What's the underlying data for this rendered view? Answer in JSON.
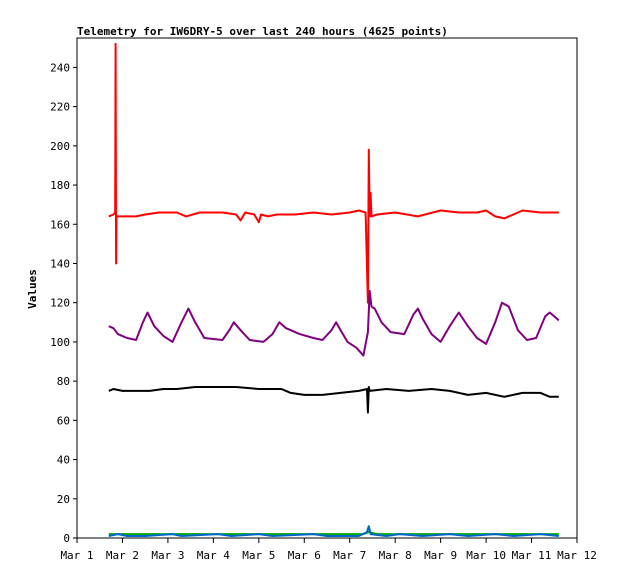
{
  "chart_data": {
    "type": "line",
    "title": "Telemetry for IW6DRY-5 over last 240 hours (4625 points)",
    "xlabel": "",
    "ylabel": "Values",
    "xlim": [
      1,
      12
    ],
    "ylim": [
      0,
      255
    ],
    "grid": false,
    "legend": "none",
    "x_ticks": [
      1,
      2,
      3,
      4,
      5,
      6,
      7,
      8,
      9,
      10,
      11,
      12
    ],
    "x_tick_labels": [
      "Mar 1",
      "Mar 2",
      "Mar 3",
      "Mar 4",
      "Mar 5",
      "Mar 6",
      "Mar 7",
      "Mar 8",
      "Mar 9",
      "Mar 10",
      "Mar 11",
      "Mar 12"
    ],
    "y_ticks": [
      0,
      20,
      40,
      60,
      80,
      100,
      120,
      140,
      160,
      180,
      200,
      220,
      240
    ],
    "series": [
      {
        "color": "#ff0000",
        "points": [
          [
            1.7,
            164
          ],
          [
            1.8,
            165
          ],
          [
            1.84,
            166
          ],
          [
            1.85,
            252
          ],
          [
            1.86,
            140
          ],
          [
            1.87,
            164
          ],
          [
            2.0,
            164
          ],
          [
            2.3,
            164
          ],
          [
            2.5,
            165
          ],
          [
            2.8,
            166
          ],
          [
            3.2,
            166
          ],
          [
            3.4,
            164
          ],
          [
            3.7,
            166
          ],
          [
            4.2,
            166
          ],
          [
            4.5,
            165
          ],
          [
            4.6,
            162
          ],
          [
            4.7,
            166
          ],
          [
            4.9,
            165
          ],
          [
            5.0,
            161
          ],
          [
            5.05,
            165
          ],
          [
            5.2,
            164
          ],
          [
            5.4,
            165
          ],
          [
            5.8,
            165
          ],
          [
            6.2,
            166
          ],
          [
            6.6,
            165
          ],
          [
            7.0,
            166
          ],
          [
            7.2,
            167
          ],
          [
            7.35,
            166
          ],
          [
            7.4,
            120
          ],
          [
            7.42,
            198
          ],
          [
            7.44,
            164
          ],
          [
            7.46,
            176
          ],
          [
            7.48,
            164
          ],
          [
            7.6,
            165
          ],
          [
            8.0,
            166
          ],
          [
            8.5,
            164
          ],
          [
            9.0,
            167
          ],
          [
            9.4,
            166
          ],
          [
            9.8,
            166
          ],
          [
            10.0,
            167
          ],
          [
            10.2,
            164
          ],
          [
            10.4,
            163
          ],
          [
            10.6,
            165
          ],
          [
            10.8,
            167
          ],
          [
            11.2,
            166
          ],
          [
            11.6,
            166
          ]
        ]
      },
      {
        "color": "#800080",
        "points": [
          [
            1.7,
            108
          ],
          [
            1.8,
            107
          ],
          [
            1.9,
            104
          ],
          [
            2.1,
            102
          ],
          [
            2.3,
            101
          ],
          [
            2.45,
            110
          ],
          [
            2.55,
            115
          ],
          [
            2.7,
            108
          ],
          [
            2.9,
            103
          ],
          [
            3.1,
            100
          ],
          [
            3.3,
            110
          ],
          [
            3.45,
            117
          ],
          [
            3.6,
            110
          ],
          [
            3.8,
            102
          ],
          [
            4.2,
            101
          ],
          [
            4.35,
            106
          ],
          [
            4.45,
            110
          ],
          [
            4.6,
            106
          ],
          [
            4.8,
            101
          ],
          [
            5.1,
            100
          ],
          [
            5.3,
            104
          ],
          [
            5.45,
            110
          ],
          [
            5.6,
            107
          ],
          [
            5.9,
            104
          ],
          [
            6.2,
            102
          ],
          [
            6.4,
            101
          ],
          [
            6.6,
            106
          ],
          [
            6.7,
            110
          ],
          [
            6.8,
            106
          ],
          [
            6.95,
            100
          ],
          [
            7.15,
            97
          ],
          [
            7.3,
            93
          ],
          [
            7.4,
            105
          ],
          [
            7.44,
            126
          ],
          [
            7.48,
            118
          ],
          [
            7.55,
            117
          ],
          [
            7.7,
            110
          ],
          [
            7.9,
            105
          ],
          [
            8.2,
            104
          ],
          [
            8.4,
            114
          ],
          [
            8.5,
            117
          ],
          [
            8.6,
            112
          ],
          [
            8.8,
            104
          ],
          [
            9.0,
            100
          ],
          [
            9.2,
            108
          ],
          [
            9.4,
            115
          ],
          [
            9.6,
            108
          ],
          [
            9.8,
            102
          ],
          [
            10.0,
            99
          ],
          [
            10.2,
            110
          ],
          [
            10.35,
            120
          ],
          [
            10.5,
            118
          ],
          [
            10.7,
            106
          ],
          [
            10.9,
            101
          ],
          [
            11.1,
            102
          ],
          [
            11.3,
            113
          ],
          [
            11.4,
            115
          ],
          [
            11.5,
            113
          ],
          [
            11.6,
            111
          ]
        ]
      },
      {
        "color": "#000000",
        "points": [
          [
            1.7,
            75
          ],
          [
            1.8,
            76
          ],
          [
            2.0,
            75
          ],
          [
            2.3,
            75
          ],
          [
            2.6,
            75
          ],
          [
            2.9,
            76
          ],
          [
            3.2,
            76
          ],
          [
            3.6,
            77
          ],
          [
            4.0,
            77
          ],
          [
            4.5,
            77
          ],
          [
            5.0,
            76
          ],
          [
            5.5,
            76
          ],
          [
            5.7,
            74
          ],
          [
            6.0,
            73
          ],
          [
            6.4,
            73
          ],
          [
            6.8,
            74
          ],
          [
            7.2,
            75
          ],
          [
            7.38,
            76
          ],
          [
            7.4,
            64
          ],
          [
            7.42,
            77
          ],
          [
            7.44,
            75
          ],
          [
            7.8,
            76
          ],
          [
            8.3,
            75
          ],
          [
            8.8,
            76
          ],
          [
            9.2,
            75
          ],
          [
            9.6,
            73
          ],
          [
            10.0,
            74
          ],
          [
            10.4,
            72
          ],
          [
            10.8,
            74
          ],
          [
            11.2,
            74
          ],
          [
            11.4,
            72
          ],
          [
            11.6,
            72
          ]
        ]
      },
      {
        "color": "#00aa00",
        "points": [
          [
            1.7,
            2
          ],
          [
            2.5,
            2
          ],
          [
            3.5,
            2
          ],
          [
            4.5,
            2
          ],
          [
            5.5,
            2
          ],
          [
            6.5,
            2
          ],
          [
            7.3,
            2
          ],
          [
            7.42,
            3
          ],
          [
            7.6,
            2
          ],
          [
            8.5,
            2
          ],
          [
            9.5,
            2
          ],
          [
            10.5,
            2
          ],
          [
            11.6,
            2
          ]
        ]
      },
      {
        "color": "#0066cc",
        "points": [
          [
            1.7,
            1
          ],
          [
            1.9,
            2
          ],
          [
            2.1,
            1
          ],
          [
            2.5,
            1
          ],
          [
            3.1,
            2
          ],
          [
            3.3,
            1
          ],
          [
            4.1,
            2
          ],
          [
            4.4,
            1
          ],
          [
            5.0,
            2
          ],
          [
            5.3,
            1
          ],
          [
            6.2,
            2
          ],
          [
            6.5,
            1
          ],
          [
            7.2,
            1
          ],
          [
            7.38,
            3
          ],
          [
            7.42,
            6
          ],
          [
            7.46,
            2
          ],
          [
            7.8,
            1
          ],
          [
            8.1,
            2
          ],
          [
            8.6,
            1
          ],
          [
            9.2,
            2
          ],
          [
            9.6,
            1
          ],
          [
            10.2,
            2
          ],
          [
            10.6,
            1
          ],
          [
            11.2,
            2
          ],
          [
            11.6,
            1
          ]
        ]
      }
    ]
  }
}
